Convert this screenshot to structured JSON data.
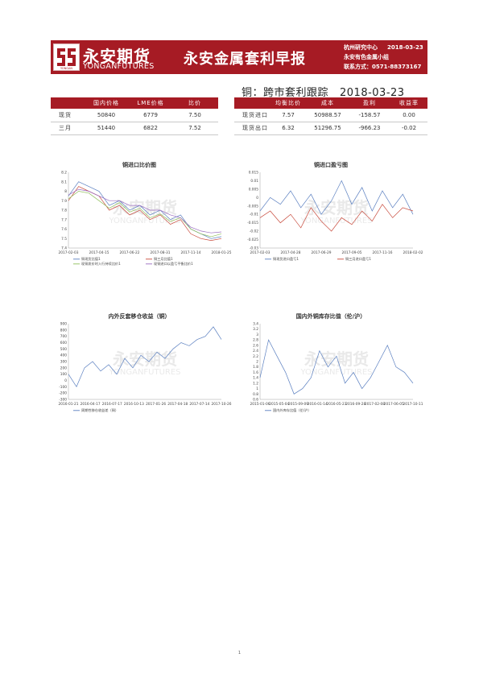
{
  "header": {
    "logo_cn": "永安期货",
    "logo_en": "YONGANFUTURES",
    "logo_small_text": "YONGAN",
    "title": "永安金属套利早报",
    "center": "杭州研究中心",
    "date": "2018-03-23",
    "team": "永安有色金属小组",
    "contact": "联系方式：0571-88373167"
  },
  "section": {
    "title": "铜：跨市套利跟踪",
    "date": "2018-03-23"
  },
  "price_table": {
    "headers": [
      "",
      "国内价格",
      "LME价格",
      "比价"
    ],
    "rows": [
      {
        "label": "现货",
        "domestic": "50840",
        "lme": "6779",
        "ratio": "7.50"
      },
      {
        "label": "三月",
        "domestic": "51440",
        "lme": "6822",
        "ratio": "7.52"
      }
    ]
  },
  "arb_table": {
    "headers": [
      "",
      "均衡比价",
      "成本",
      "盈利",
      "收益率"
    ],
    "rows": [
      {
        "label": "现货进口",
        "eq": "7.57",
        "cost": "50988.57",
        "profit": "-158.57",
        "yield": "0.00"
      },
      {
        "label": "现货出口",
        "eq": "6.32",
        "cost": "51296.75",
        "profit": "-966.23",
        "yield": "-0.02"
      }
    ]
  },
  "watermark": {
    "cn": "永安期货",
    "en": "YONGANFUTURES"
  },
  "colors": {
    "brand": "#a61b24",
    "series_blue": "#5a7fc0",
    "series_red": "#c84a3c",
    "series_green": "#8fbf5a",
    "series_purple": "#9a6cc0",
    "series_orange": "#e5a24a"
  },
  "chart_data": [
    {
      "type": "line",
      "title": "铜进口比价图",
      "x_ticks": [
        "2017-02-03",
        "2017-04-15",
        "2017-06-22",
        "2017-08-31",
        "2017-11-14",
        "2018-01-25"
      ],
      "ylim": [
        7.4,
        8.2
      ],
      "y_ticks": [
        "8.2",
        "8.1",
        "8",
        "7.9",
        "7.8",
        "7.7",
        "7.6",
        "7.5",
        "7.4"
      ],
      "legend": [
        "铜现货比值1",
        "铜三月比值1",
        "现铜发价时入行持续比价1",
        "现铜进口以盈亏平衡比价1"
      ],
      "series": [
        {
          "values": [
            7.95,
            8.1,
            8.05,
            8.0,
            7.85,
            7.9,
            7.8,
            7.85,
            7.75,
            7.8,
            7.7,
            7.75,
            7.6,
            7.55,
            7.5,
            7.52
          ]
        },
        {
          "values": [
            7.9,
            8.05,
            8.0,
            7.95,
            7.8,
            7.85,
            7.75,
            7.8,
            7.7,
            7.75,
            7.65,
            7.7,
            7.55,
            7.5,
            7.48,
            7.5
          ]
        },
        {
          "values": [
            7.92,
            8.0,
            7.98,
            7.9,
            7.82,
            7.88,
            7.78,
            7.82,
            7.72,
            7.76,
            7.68,
            7.72,
            7.6,
            7.55,
            7.52,
            7.55
          ]
        },
        {
          "values": [
            7.96,
            8.02,
            8.0,
            7.95,
            7.9,
            7.9,
            7.85,
            7.85,
            7.8,
            7.8,
            7.75,
            7.72,
            7.62,
            7.58,
            7.56,
            7.57
          ]
        }
      ]
    },
    {
      "type": "line",
      "title": "铜进口盈亏图",
      "x_ticks": [
        "2017-02-03",
        "2017-04-28",
        "2017-06-29",
        "2017-09-05",
        "2017-11-16",
        "2018-02-02"
      ],
      "ylim": [
        -0.03,
        0.015
      ],
      "y_ticks": [
        "0.015",
        "0.01",
        "0.005",
        "0",
        "-0.005",
        "-0.01",
        "-0.015",
        "-0.02",
        "-0.025",
        "-0.03"
      ],
      "legend": [
        "铜现货进口盈亏1",
        "铜三月进口盈亏1"
      ],
      "series": [
        {
          "values": [
            -0.008,
            0.0,
            -0.004,
            0.004,
            -0.006,
            0.002,
            -0.01,
            -0.002,
            0.01,
            -0.004,
            0.006,
            -0.008,
            0.004,
            -0.006,
            0.002,
            -0.01
          ]
        },
        {
          "values": [
            -0.012,
            -0.008,
            -0.015,
            -0.01,
            -0.018,
            -0.006,
            -0.014,
            -0.02,
            -0.012,
            -0.016,
            -0.008,
            -0.014,
            -0.004,
            -0.012,
            -0.006,
            -0.008
          ]
        }
      ]
    },
    {
      "type": "line",
      "title": "内外反套移仓收益（铜）",
      "x_ticks": [
        "2016-01-21",
        "2016-04-17",
        "2016-07-17",
        "2016-10-13",
        "2017-01-26",
        "2017-04-18",
        "2017-07-14",
        "2017-10-26"
      ],
      "ylim": [
        -300,
        900
      ],
      "y_ticks": [
        "900",
        "800",
        "700",
        "600",
        "500",
        "400",
        "300",
        "200",
        "100",
        "0",
        "-100",
        "-200",
        "-300"
      ],
      "legend": [
        "周期性移仓收益差（铜）"
      ],
      "series": [
        {
          "values": [
            100,
            -100,
            200,
            300,
            150,
            250,
            100,
            350,
            200,
            400,
            300,
            450,
            350,
            500,
            600,
            550,
            650,
            700,
            850,
            650
          ]
        }
      ]
    },
    {
      "type": "line",
      "title": "国内外铜库存比值（伦/沪）",
      "x_ticks": [
        "2015-01-06",
        "2015-05-04",
        "2015-09-09",
        "2016-01-14",
        "2016-05-23",
        "2016-09-28",
        "2017-02-08",
        "2017-06-05",
        "2017-10-11"
      ],
      "ylim": [
        0.6,
        3.4
      ],
      "y_ticks": [
        "3.4",
        "3.2",
        "3",
        "2.8",
        "2.6",
        "2.4",
        "2.2",
        "2",
        "1.8",
        "1.6",
        "1.4",
        "1.2",
        "1",
        "0.8",
        "0.6"
      ],
      "legend": [
        "国内外库存比值（伦/沪）"
      ],
      "series": [
        {
          "values": [
            1.4,
            2.8,
            2.2,
            1.6,
            0.8,
            1.0,
            1.4,
            2.4,
            1.8,
            2.2,
            1.2,
            1.6,
            1.0,
            1.4,
            2.0,
            2.6,
            1.8,
            1.6,
            1.2
          ]
        }
      ]
    }
  ],
  "page_number": "1"
}
